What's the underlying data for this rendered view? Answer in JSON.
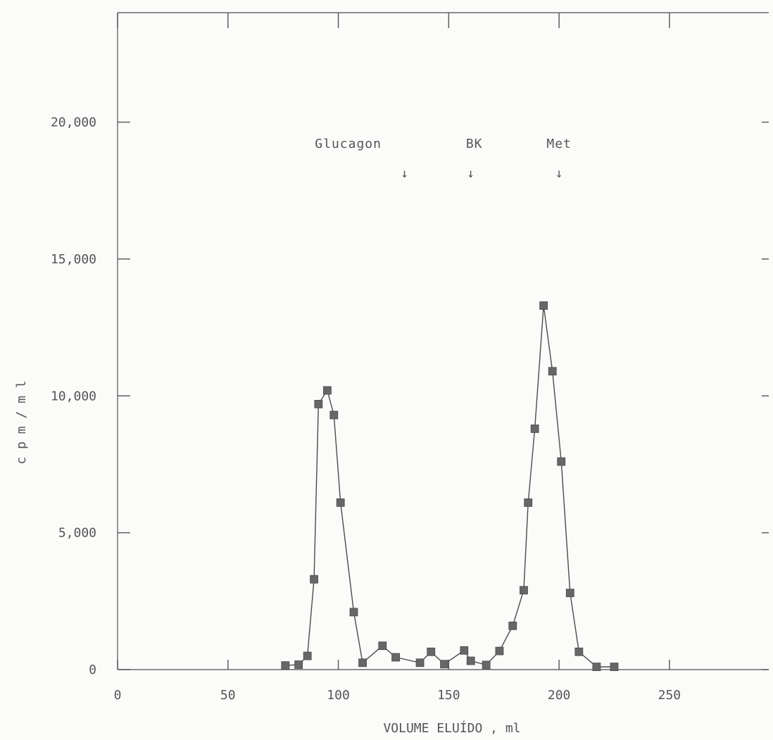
{
  "chart_data": {
    "type": "line",
    "title": "",
    "xlabel": "VOLUME ELUÍDO , ml",
    "ylabel": "c p m / m l",
    "xlim": [
      0,
      295
    ],
    "ylim": [
      0,
      24000
    ],
    "x_ticks": [
      0,
      50,
      100,
      150,
      200,
      250
    ],
    "x_tick_labels": [
      "0",
      "50",
      "100",
      "150",
      "200",
      "250"
    ],
    "y_ticks": [
      0,
      5000,
      10000,
      15000,
      20000
    ],
    "y_tick_labels": [
      "0",
      "5,000",
      "10,000",
      "15,000",
      "20,000"
    ],
    "grid": false,
    "legend": "none",
    "marker": "square",
    "series": [
      {
        "x": [
          76,
          82,
          86,
          89,
          91,
          95,
          98,
          101,
          107,
          111,
          120,
          126,
          137,
          142,
          148,
          157,
          160,
          167,
          173,
          179,
          184,
          186,
          189,
          193,
          197,
          201,
          205,
          209,
          217,
          225
        ],
        "values": [
          150,
          180,
          500,
          3300,
          9700,
          10200,
          9300,
          6100,
          2100,
          250,
          870,
          450,
          250,
          650,
          200,
          700,
          320,
          170,
          680,
          1600,
          2900,
          6100,
          8800,
          13300,
          10900,
          7600,
          2800,
          650,
          100,
          100
        ]
      }
    ],
    "annotations": [
      {
        "label": "Glucagon",
        "x": 130,
        "arrow": "↓"
      },
      {
        "label": "BK",
        "x": 160,
        "arrow": "↓"
      },
      {
        "label": "Met",
        "x": 200,
        "arrow": "↓"
      }
    ]
  }
}
